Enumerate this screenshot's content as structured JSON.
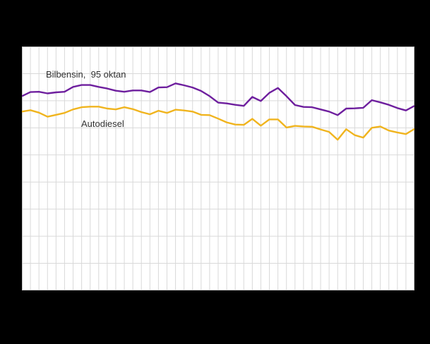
{
  "figure": {
    "background_color": "#000000",
    "plot_background": "#ffffff",
    "grid_color": "#d9d9d9",
    "border_color": "#c6c6c6",
    "label_text_color": "#333333"
  },
  "chart_data": {
    "type": "line",
    "title": "",
    "xlabel": "",
    "ylabel": "",
    "axis_tick_labels_visible": false,
    "grid": "both",
    "x_gridline_count": 47,
    "y_gridline_count": 10,
    "ylim": [
      0,
      9
    ],
    "x_note": "47 evenly spaced points, one per vertical gridline; x tick labels not visible in image",
    "y_note": "values in horizontal-gridline units from bottom border (0) to top border (9); y tick labels not visible in image",
    "legend": "inline labels beside lines",
    "series": [
      {
        "name": "Bilbensin,  95 oktan",
        "color": "#6e1f9e",
        "values": [
          7.17,
          7.32,
          7.33,
          7.27,
          7.31,
          7.33,
          7.51,
          7.58,
          7.58,
          7.51,
          7.45,
          7.37,
          7.33,
          7.38,
          7.38,
          7.32,
          7.49,
          7.5,
          7.64,
          7.57,
          7.49,
          7.36,
          7.17,
          6.93,
          6.9,
          6.85,
          6.81,
          7.14,
          6.99,
          7.29,
          7.47,
          7.17,
          6.84,
          6.77,
          6.76,
          6.68,
          6.6,
          6.47,
          6.71,
          6.72,
          6.74,
          7.02,
          6.94,
          6.85,
          6.73,
          6.64,
          6.81
        ]
      },
      {
        "name": "Autodiesel",
        "color": "#f0b41e",
        "values": [
          6.6,
          6.65,
          6.56,
          6.41,
          6.48,
          6.55,
          6.68,
          6.76,
          6.78,
          6.78,
          6.71,
          6.68,
          6.76,
          6.69,
          6.58,
          6.5,
          6.63,
          6.55,
          6.67,
          6.64,
          6.6,
          6.48,
          6.47,
          6.34,
          6.2,
          6.12,
          6.11,
          6.33,
          6.08,
          6.31,
          6.31,
          6.01,
          6.07,
          6.05,
          6.04,
          5.94,
          5.85,
          5.56,
          5.95,
          5.73,
          5.64,
          6.0,
          6.05,
          5.9,
          5.83,
          5.77,
          5.96
        ]
      }
    ]
  }
}
